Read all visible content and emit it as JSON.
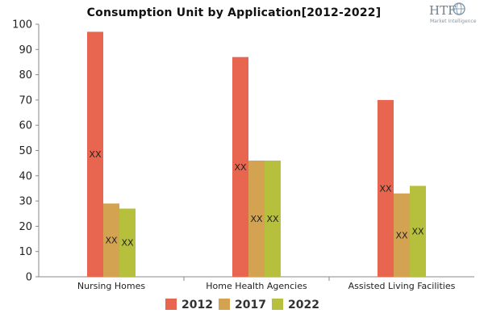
{
  "logo": {
    "text": "HTF",
    "subtext": "Market Intelligence"
  },
  "chart_data": {
    "type": "bar",
    "title": "Consumption Unit by  Application[2012-2022]",
    "xlabel": "",
    "ylabel": "",
    "categories": [
      "Nursing Homes",
      "Home Health Agencies",
      "Assisted Living Facilities"
    ],
    "series": [
      {
        "name": "2012",
        "color": "#e8664f",
        "values": [
          97,
          87,
          70
        ],
        "labels": [
          "XX",
          "XX",
          "XX"
        ]
      },
      {
        "name": "2017",
        "color": "#d4a352",
        "values": [
          29,
          46,
          33
        ],
        "labels": [
          "XX",
          "XX",
          "XX"
        ]
      },
      {
        "name": "2022",
        "color": "#b6c03c",
        "values": [
          27,
          46,
          36
        ],
        "labels": [
          "XX",
          "XX",
          "XX"
        ]
      }
    ],
    "ylim": [
      0,
      100
    ],
    "yticks": [
      0,
      10,
      20,
      30,
      40,
      50,
      60,
      70,
      80,
      90,
      100
    ],
    "grid": false,
    "legend": "bottom-center"
  }
}
